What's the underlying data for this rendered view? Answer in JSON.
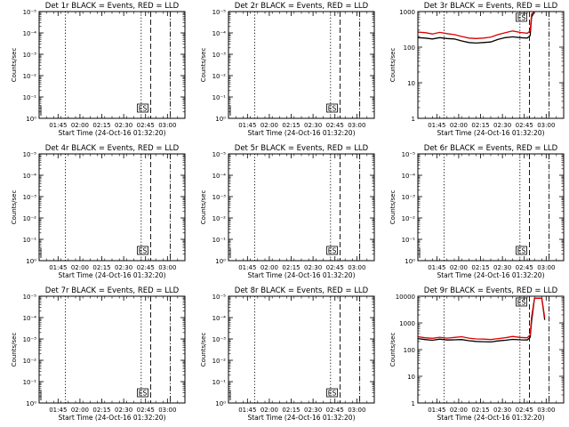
{
  "x_axis": {
    "title": "Start Time (24-Oct-16 01:32:20)",
    "range_minutes": [
      0,
      100
    ],
    "tick_labels": [
      "01:45",
      "02:00",
      "02:15",
      "02:30",
      "02:45",
      "03:00"
    ],
    "tick_minutes": [
      13,
      28,
      43,
      58,
      73,
      88
    ]
  },
  "y_axis_title": "Counts/sec",
  "vlines": [
    {
      "minute": 18,
      "style": "dotted"
    },
    {
      "minute": 70,
      "style": "dotted"
    },
    {
      "minute": 76.5,
      "style": "dashed"
    },
    {
      "minute": 90,
      "style": "dashdot"
    }
  ],
  "chart_data": [
    {
      "type": "line",
      "title": "Det 1r BLACK = Events, RED = LLD",
      "yscale": "log",
      "ylim": [
        1,
        10000
      ],
      "ytick_labels": [
        "10⁰",
        "10⁻¹",
        "10⁻²",
        "10⁻³",
        "10⁻⁴",
        "10⁻⁵"
      ],
      "series": [],
      "markers": [
        "ES"
      ]
    },
    {
      "type": "line",
      "title": "Det 2r BLACK = Events, RED = LLD",
      "yscale": "log",
      "ylim": [
        1,
        10000
      ],
      "ytick_labels": [
        "10⁰",
        "10⁻¹",
        "10⁻²",
        "10⁻³",
        "10⁻⁴",
        "10⁻⁵"
      ],
      "series": [],
      "markers": [
        "ES"
      ]
    },
    {
      "type": "line",
      "title": "Det 3r BLACK = Events, RED = LLD",
      "yscale": "log",
      "ylim": [
        1,
        1000
      ],
      "ytick_labels": [
        "1",
        "10",
        "100",
        "1000"
      ],
      "series": [
        {
          "color": "#000000",
          "x": [
            0,
            5,
            10,
            15,
            20,
            25,
            30,
            35,
            40,
            45,
            50,
            55,
            60,
            65,
            70,
            75,
            77,
            78,
            80
          ],
          "y": [
            185,
            180,
            170,
            185,
            175,
            170,
            150,
            135,
            130,
            135,
            140,
            165,
            185,
            195,
            185,
            180,
            210,
            700,
            1000
          ]
        },
        {
          "color": "#dd0000",
          "x": [
            0,
            5,
            10,
            15,
            20,
            25,
            30,
            35,
            40,
            45,
            50,
            55,
            60,
            65,
            70,
            75,
            77,
            78,
            80
          ],
          "y": [
            265,
            255,
            235,
            260,
            240,
            225,
            200,
            180,
            175,
            180,
            190,
            225,
            255,
            285,
            260,
            245,
            285,
            850,
            1000
          ]
        }
      ],
      "markers": [
        "ES"
      ]
    },
    {
      "type": "line",
      "title": "Det 4r BLACK = Events, RED = LLD",
      "yscale": "log",
      "ylim": [
        1,
        10000
      ],
      "ytick_labels": [
        "10⁰",
        "10⁻¹",
        "10⁻²",
        "10⁻³",
        "10⁻⁴",
        "10⁻⁵"
      ],
      "series": [],
      "markers": [
        "ES"
      ]
    },
    {
      "type": "line",
      "title": "Det 5r BLACK = Events, RED = LLD",
      "yscale": "log",
      "ylim": [
        1,
        10000
      ],
      "ytick_labels": [
        "10⁰",
        "10⁻¹",
        "10⁻²",
        "10⁻³",
        "10⁻⁴",
        "10⁻⁵"
      ],
      "series": [],
      "markers": [
        "ES"
      ]
    },
    {
      "type": "line",
      "title": "Det 6r BLACK = Events, RED = LLD",
      "yscale": "log",
      "ylim": [
        1,
        10000
      ],
      "ytick_labels": [
        "10⁰",
        "10⁻¹",
        "10⁻²",
        "10⁻³",
        "10⁻⁴",
        "10⁻⁵"
      ],
      "series": [],
      "markers": [
        "ES"
      ]
    },
    {
      "type": "line",
      "title": "Det 7r BLACK = Events, RED = LLD",
      "yscale": "log",
      "ylim": [
        1,
        10000
      ],
      "ytick_labels": [
        "10⁰",
        "10⁻¹",
        "10⁻²",
        "10⁻³",
        "10⁻⁴",
        "10⁻⁵"
      ],
      "series": [],
      "markers": [
        "ES"
      ]
    },
    {
      "type": "line",
      "title": "Det 8r BLACK = Events, RED = LLD",
      "yscale": "log",
      "ylim": [
        1,
        10000
      ],
      "ytick_labels": [
        "10⁰",
        "10⁻¹",
        "10⁻²",
        "10⁻³",
        "10⁻⁴",
        "10⁻⁵"
      ],
      "series": [],
      "markers": [
        "ES"
      ]
    },
    {
      "type": "line",
      "title": "Det 9r BLACK = Events, RED = LLD",
      "yscale": "log",
      "ylim": [
        1,
        12000
      ],
      "ytick_labels": [
        "1",
        "10",
        "100",
        "1000",
        "10000"
      ],
      "series": [
        {
          "color": "#000000",
          "x": [
            0,
            5,
            10,
            15,
            20,
            25,
            30,
            35,
            40,
            45,
            50,
            55,
            60,
            65,
            70,
            75,
            77,
            78,
            80,
            85,
            87
          ],
          "y": [
            290,
            265,
            250,
            275,
            255,
            260,
            265,
            240,
            225,
            220,
            215,
            235,
            250,
            270,
            260,
            255,
            320,
            1300,
            10000,
            10000,
            1500
          ]
        },
        {
          "color": "#dd0000",
          "x": [
            0,
            5,
            10,
            15,
            20,
            25,
            30,
            35,
            40,
            45,
            50,
            55,
            60,
            65,
            70,
            75,
            77,
            78,
            80,
            85,
            87
          ],
          "y": [
            340,
            310,
            295,
            325,
            300,
            320,
            340,
            300,
            280,
            275,
            265,
            290,
            310,
            350,
            320,
            310,
            400,
            1900,
            10000,
            10000,
            1800
          ]
        }
      ],
      "markers": [
        "ES"
      ]
    }
  ]
}
